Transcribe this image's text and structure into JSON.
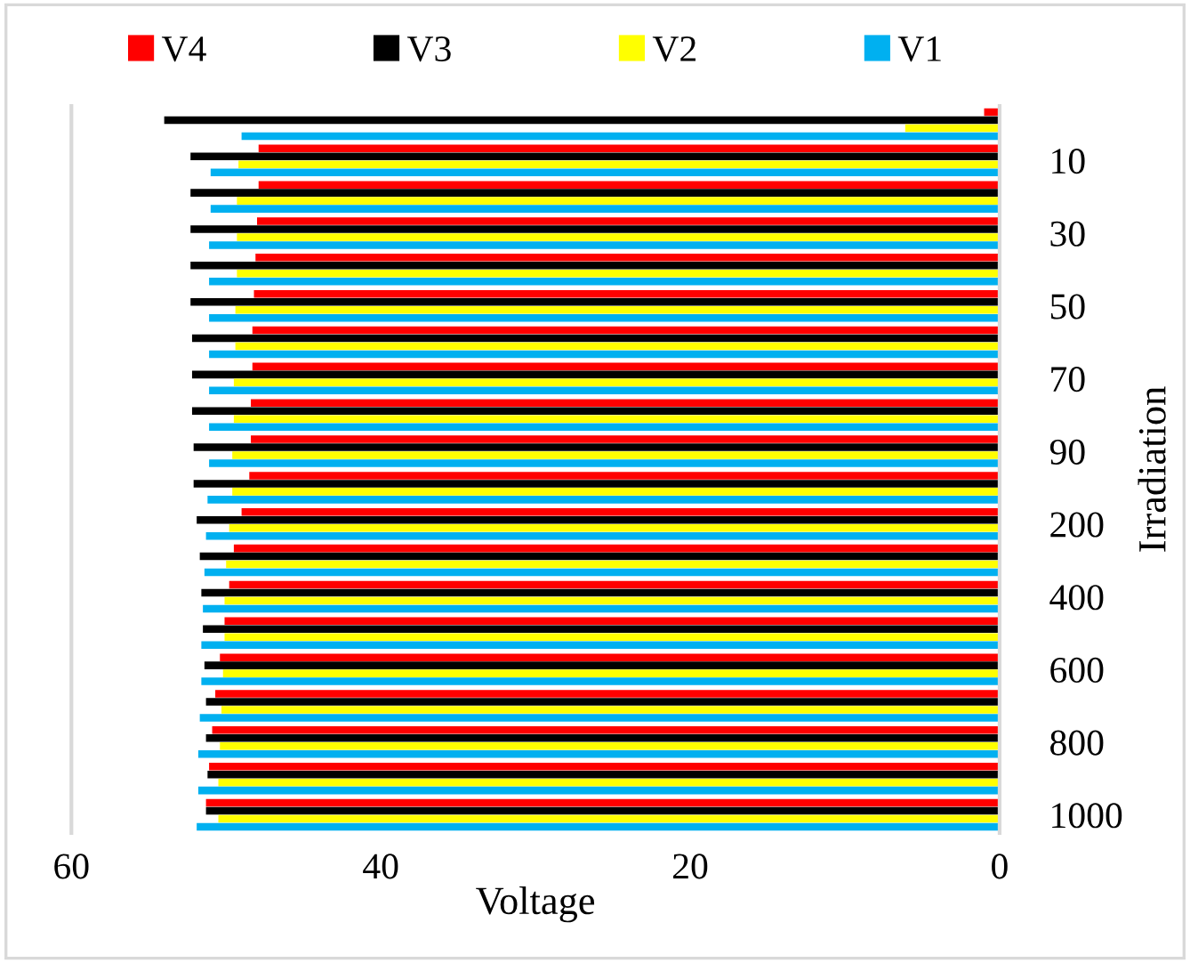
{
  "chart_data": {
    "type": "bar",
    "orientation": "horizontal",
    "xlabel": "Voltage",
    "ylabel": "Irradiation",
    "categories": [
      null,
      "10",
      null,
      "30",
      null,
      "50",
      null,
      "70",
      null,
      "90",
      null,
      "200",
      null,
      "400",
      null,
      "600",
      null,
      "800",
      null,
      "1000"
    ],
    "series": [
      {
        "name": "V4",
        "color": "#ff0000",
        "values": [
          1.0,
          47.9,
          47.9,
          48.0,
          48.1,
          48.2,
          48.3,
          48.3,
          48.4,
          48.4,
          48.5,
          49.0,
          49.5,
          49.8,
          50.1,
          50.4,
          50.7,
          50.9,
          51.1,
          51.3
        ]
      },
      {
        "name": "V3",
        "color": "#000000",
        "values": [
          54.0,
          52.3,
          52.3,
          52.3,
          52.3,
          52.3,
          52.2,
          52.2,
          52.2,
          52.1,
          52.1,
          51.9,
          51.7,
          51.6,
          51.5,
          51.4,
          51.3,
          51.3,
          51.2,
          51.3
        ]
      },
      {
        "name": "V2",
        "color": "#ffff00",
        "values": [
          6.1,
          49.2,
          49.3,
          49.3,
          49.3,
          49.4,
          49.4,
          49.5,
          49.5,
          49.6,
          49.6,
          49.8,
          50.0,
          50.1,
          50.1,
          50.2,
          50.3,
          50.4,
          50.5,
          50.5
        ]
      },
      {
        "name": "V1",
        "color": "#00b0f0",
        "values": [
          49.0,
          51.0,
          51.0,
          51.1,
          51.1,
          51.1,
          51.1,
          51.1,
          51.1,
          51.1,
          51.2,
          51.3,
          51.4,
          51.5,
          51.6,
          51.6,
          51.7,
          51.8,
          51.8,
          51.9
        ]
      }
    ],
    "xlim": [
      60,
      0
    ],
    "xticks": [
      60,
      40,
      20,
      0
    ],
    "grid": false,
    "legend": "top"
  }
}
